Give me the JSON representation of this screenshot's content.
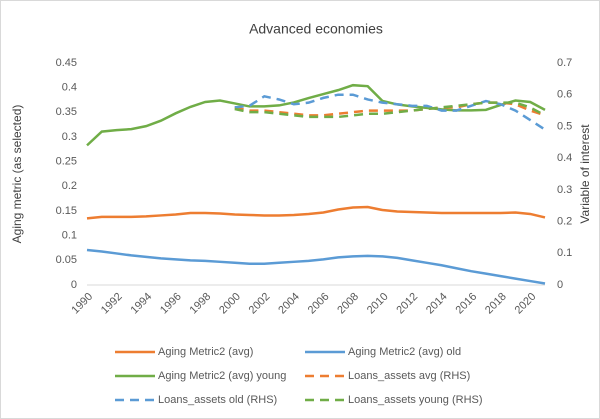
{
  "chart_data": {
    "type": "line",
    "title": "Advanced economies",
    "y_label": "Aging metric (as selected)",
    "y2_label": "Variable of interest",
    "x": [
      1990,
      1991,
      1992,
      1993,
      1994,
      1995,
      1996,
      1997,
      1998,
      1999,
      2000,
      2001,
      2002,
      2003,
      2004,
      2005,
      2006,
      2007,
      2008,
      2009,
      2010,
      2011,
      2012,
      2013,
      2014,
      2015,
      2016,
      2017,
      2018,
      2019,
      2020,
      2021
    ],
    "xlim": [
      1990,
      2021
    ],
    "xticks": [
      1990,
      1992,
      1994,
      1996,
      1998,
      2000,
      2002,
      2004,
      2006,
      2008,
      2010,
      2012,
      2014,
      2016,
      2018,
      2020
    ],
    "ylim": [
      0,
      0.45
    ],
    "yticks": [
      0,
      0.05,
      0.1,
      0.15,
      0.2,
      0.25,
      0.3,
      0.35,
      0.4,
      0.45
    ],
    "y2lim": [
      0,
      0.7
    ],
    "y2ticks": [
      0,
      0.1,
      0.2,
      0.3,
      0.4,
      0.5,
      0.6,
      0.7
    ],
    "grid": false,
    "legend": "bottom",
    "series": [
      {
        "name": "Aging Metric2 (avg)",
        "color": "#ed7d31",
        "dash": false,
        "values": [
          0.135,
          0.138,
          0.138,
          0.138,
          0.139,
          0.141,
          0.143,
          0.146,
          0.146,
          0.145,
          0.143,
          0.142,
          0.141,
          0.141,
          0.142,
          0.144,
          0.147,
          0.153,
          0.157,
          0.158,
          0.152,
          0.149,
          0.148,
          0.147,
          0.146,
          0.146,
          0.146,
          0.146,
          0.146,
          0.147,
          0.144,
          0.137
        ]
      },
      {
        "name": "Aging Metric2 (avg) old",
        "color": "#5b9bd5",
        "dash": false,
        "values": [
          0.071,
          0.068,
          0.064,
          0.06,
          0.057,
          0.054,
          0.052,
          0.05,
          0.049,
          0.047,
          0.045,
          0.043,
          0.043,
          0.045,
          0.047,
          0.049,
          0.052,
          0.056,
          0.058,
          0.059,
          0.058,
          0.055,
          0.05,
          0.045,
          0.04,
          0.034,
          0.028,
          0.023,
          0.018,
          0.013,
          0.008,
          0.003
        ]
      },
      {
        "name": "Aging Metric2 (avg) young",
        "color": "#70ad47",
        "dash": false,
        "values": [
          0.283,
          0.311,
          0.314,
          0.316,
          0.322,
          0.333,
          0.348,
          0.361,
          0.371,
          0.374,
          0.368,
          0.362,
          0.362,
          0.364,
          0.37,
          0.379,
          0.387,
          0.395,
          0.405,
          0.403,
          0.373,
          0.366,
          0.362,
          0.359,
          0.356,
          0.354,
          0.354,
          0.355,
          0.365,
          0.374,
          0.371,
          0.355
        ]
      },
      {
        "name": "Loans_assets avg (RHS)",
        "color": "#ed7d31",
        "dash": true,
        "axis": "y2",
        "values": [
          null,
          null,
          null,
          null,
          null,
          null,
          null,
          null,
          null,
          null,
          0.56,
          0.55,
          0.55,
          0.545,
          0.54,
          0.535,
          0.535,
          0.54,
          0.545,
          0.55,
          0.55,
          0.55,
          0.55,
          0.555,
          0.56,
          0.56,
          0.57,
          0.575,
          0.575,
          0.57,
          0.55,
          0.535
        ]
      },
      {
        "name": "Loans_assets old (RHS)",
        "color": "#5b9bd5",
        "dash": true,
        "axis": "y2",
        "values": [
          null,
          null,
          null,
          null,
          null,
          null,
          null,
          null,
          null,
          null,
          0.56,
          0.565,
          0.595,
          0.585,
          0.57,
          0.575,
          0.59,
          0.6,
          0.6,
          0.585,
          0.575,
          0.57,
          0.565,
          0.565,
          0.55,
          0.55,
          0.565,
          0.58,
          0.57,
          0.55,
          0.52,
          0.49
        ]
      },
      {
        "name": "Loans_assets young (RHS)",
        "color": "#70ad47",
        "dash": true,
        "axis": "y2",
        "values": [
          null,
          null,
          null,
          null,
          null,
          null,
          null,
          null,
          null,
          null,
          0.555,
          0.545,
          0.545,
          0.54,
          0.535,
          0.53,
          0.53,
          0.53,
          0.535,
          0.54,
          0.54,
          0.545,
          0.55,
          0.555,
          0.56,
          0.565,
          0.57,
          0.575,
          0.575,
          0.575,
          0.56,
          0.535
        ]
      }
    ]
  }
}
